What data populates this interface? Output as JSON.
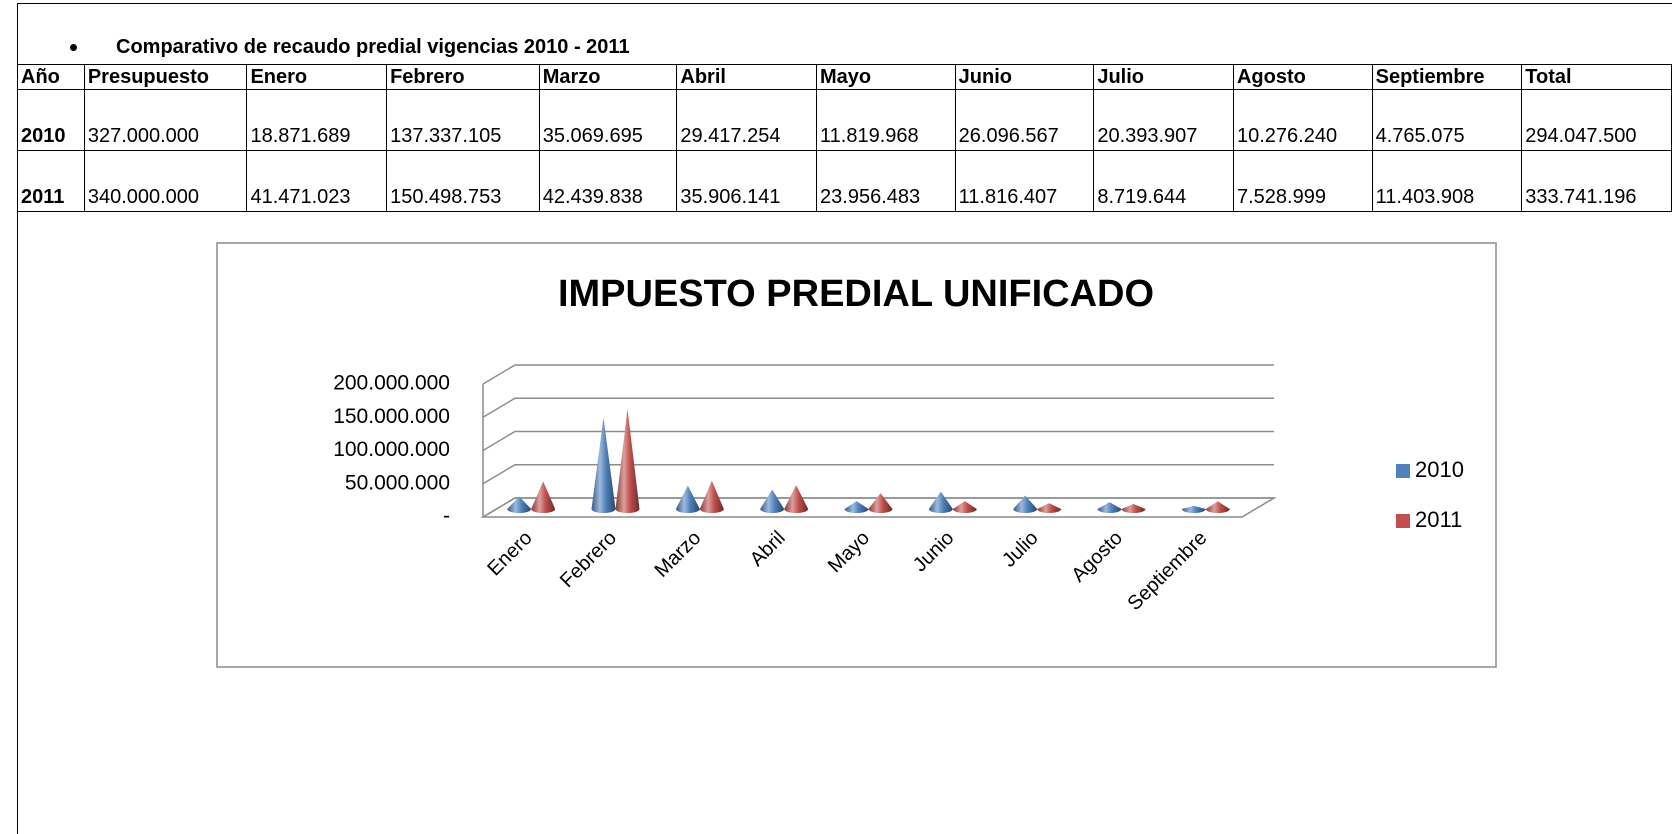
{
  "heading": "Comparativo de recaudo predial vigencias 2010 - 2011",
  "table": {
    "header": [
      "Año",
      "Presupuesto",
      "Enero",
      "Febrero",
      "Marzo",
      "Abril",
      "Mayo",
      "Junio",
      "Julio",
      "Agosto",
      "Septiembre",
      "Total"
    ],
    "rows": [
      [
        "2010",
        "327.000.000",
        "18.871.689",
        "137.337.105",
        "35.069.695",
        "29.417.254",
        "11.819.968",
        "26.096.567",
        "20.393.907",
        "10.276.240",
        "4.765.075",
        "294.047.500"
      ],
      [
        "2011",
        "340.000.000",
        "41.471.023",
        "150.498.753",
        "42.439.838",
        "35.906.141",
        "23.956.483",
        "11.816.407",
        "8.719.644",
        "7.528.999",
        "11.403.908",
        "333.741.196"
      ]
    ]
  },
  "chart_data": {
    "type": "cone3d",
    "title": "IMPUESTO PREDIAL UNIFICADO",
    "categories": [
      "Enero",
      "Febrero",
      "Marzo",
      "Abril",
      "Mayo",
      "Junio",
      "Julio",
      "Agosto",
      "Septiembre"
    ],
    "series": [
      {
        "name": "2010",
        "color": "#4f81bd",
        "values": [
          18871689,
          137337105,
          35069695,
          29417254,
          11819968,
          26096567,
          20393907,
          10276240,
          4765075
        ]
      },
      {
        "name": "2011",
        "color": "#c0504d",
        "values": [
          41471023,
          150498753,
          42439838,
          35906141,
          23956483,
          11816407,
          8719644,
          7528999,
          11403908
        ]
      }
    ],
    "ylim": [
      0,
      200000000
    ],
    "yticks": [
      {
        "value": 0,
        "label": "-"
      },
      {
        "value": 50000000,
        "label": "50.000.000"
      },
      {
        "value": 100000000,
        "label": "100.000.000"
      },
      {
        "value": 150000000,
        "label": "150.000.000"
      },
      {
        "value": 200000000,
        "label": "200.000.000"
      }
    ],
    "grid": true,
    "legend": "right"
  }
}
